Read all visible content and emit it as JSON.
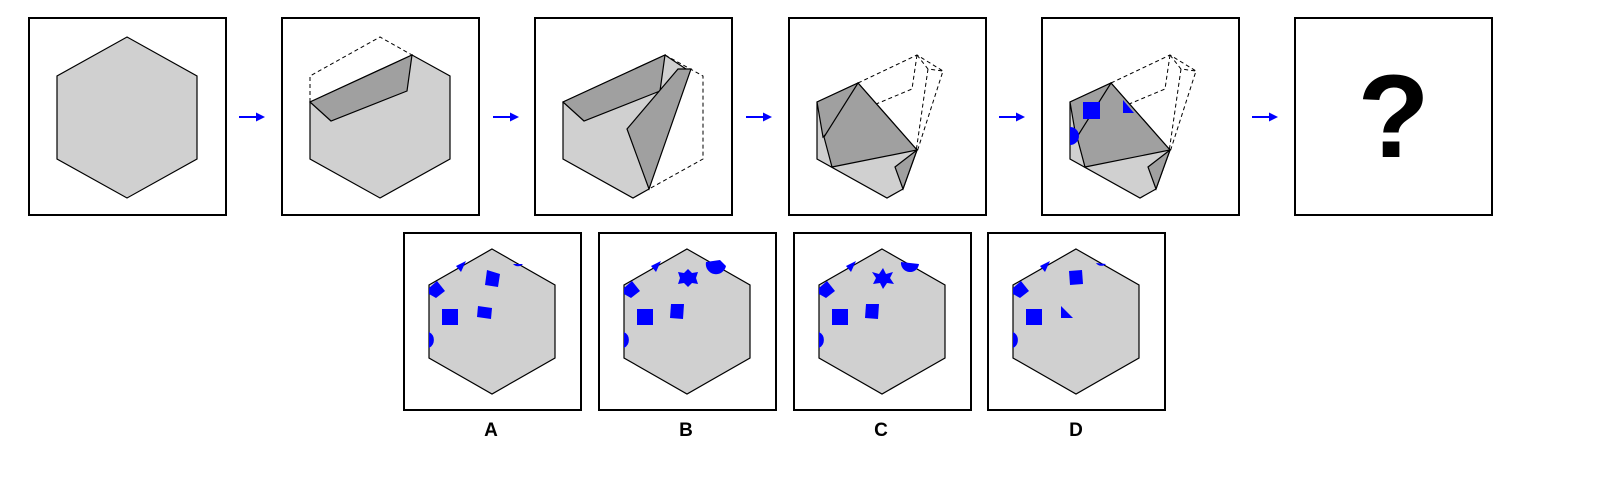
{
  "question_mark": "?",
  "options": [
    {
      "label": "A"
    },
    {
      "label": "B"
    },
    {
      "label": "C"
    },
    {
      "label": "D"
    }
  ],
  "colors": {
    "paper": "#d0d0d0",
    "fold": "#a0a0a0",
    "marks": "#0000ff",
    "arrow": "#0000ff",
    "outline": "#000000"
  },
  "icons": [
    "arrow-right-icon",
    "hexagon-paper",
    "fold-flap",
    "dashed-fold-outline",
    "blue-cutout-mark"
  ]
}
